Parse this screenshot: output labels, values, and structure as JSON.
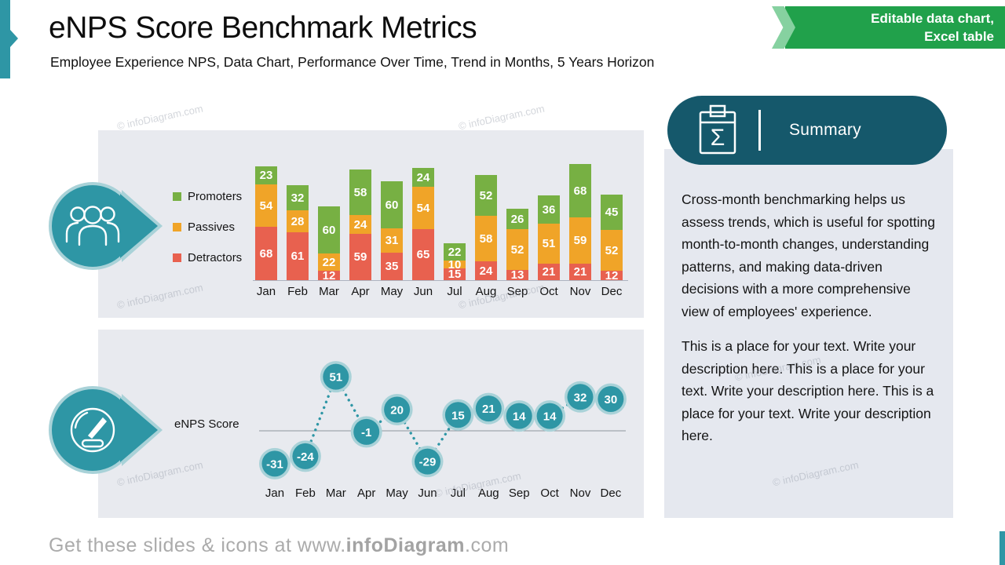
{
  "slide": {
    "title": "eNPS Score Benchmark Metrics",
    "subtitle": "Employee Experience NPS, Data Chart, Performance Over Time, Trend in Months, 5 Years Horizon",
    "ribbon": {
      "line1": "Editable data chart,",
      "line2": "Excel table"
    },
    "footer": {
      "prefix": "Get these slides & icons at www.",
      "bold": "infoDiagram",
      "suffix": ".com"
    },
    "watermark": "© infoDiagram.com"
  },
  "icons": {
    "summary_glyph": "Σ",
    "badge1": "people-group-icon",
    "badge2": "gauge-icon",
    "header_icon": "clipboard-sigma-icon"
  },
  "colors": {
    "teal": "#2E96A5",
    "teal_light": "#A9D2D8",
    "teal_dark": "#15586B",
    "panel_gray": "#E8EAEF",
    "ribbon_green": "#21A14B",
    "ribbon_green_light": "#86D1A0",
    "promoters_green": "#77B043",
    "passives_orange": "#F0A428",
    "detractors_red": "#E8614F"
  },
  "chart_data": [
    {
      "type": "bar",
      "stacked": true,
      "title": "",
      "categories": [
        "Jan",
        "Feb",
        "Mar",
        "Apr",
        "May",
        "Jun",
        "Jul",
        "Aug",
        "Sep",
        "Oct",
        "Nov",
        "Dec"
      ],
      "series": [
        {
          "name": "Promoters",
          "color": "#77B043",
          "values": [
            23,
            32,
            60,
            58,
            60,
            24,
            22,
            52,
            26,
            36,
            68,
            45
          ]
        },
        {
          "name": "Passives",
          "color": "#F0A428",
          "values": [
            54,
            28,
            22,
            24,
            31,
            54,
            10,
            58,
            52,
            51,
            59,
            52
          ]
        },
        {
          "name": "Detractors",
          "color": "#E8614F",
          "values": [
            68,
            61,
            12,
            59,
            35,
            65,
            15,
            24,
            13,
            21,
            21,
            12
          ]
        }
      ],
      "legend_position": "left",
      "grid": false,
      "data_labels": true
    },
    {
      "type": "line",
      "name": "eNPS Score",
      "categories": [
        "Jan",
        "Feb",
        "Mar",
        "Apr",
        "May",
        "Jun",
        "Jul",
        "Aug",
        "Sep",
        "Oct",
        "Nov",
        "Dec"
      ],
      "values": [
        -31,
        -24,
        51,
        -1,
        20,
        -29,
        15,
        21,
        14,
        14,
        32,
        30
      ],
      "style": "dotted-line-with-circle-markers",
      "zero_line": true,
      "marker_color": "#2E96A5",
      "marker_ring_color": "#A9D2D8",
      "data_labels": true
    }
  ],
  "summary": {
    "header": "Summary",
    "paragraphs": [
      "Cross-month benchmarking helps us assess trends, which is useful for spotting month-to-month changes, understanding patterns, and making data-driven decisions with a more comprehensive view of employees' experience.",
      "This is a place for your text. Write your description here. This is a place for your text. Write your description here. This is a place for your text. Write your description here."
    ]
  }
}
